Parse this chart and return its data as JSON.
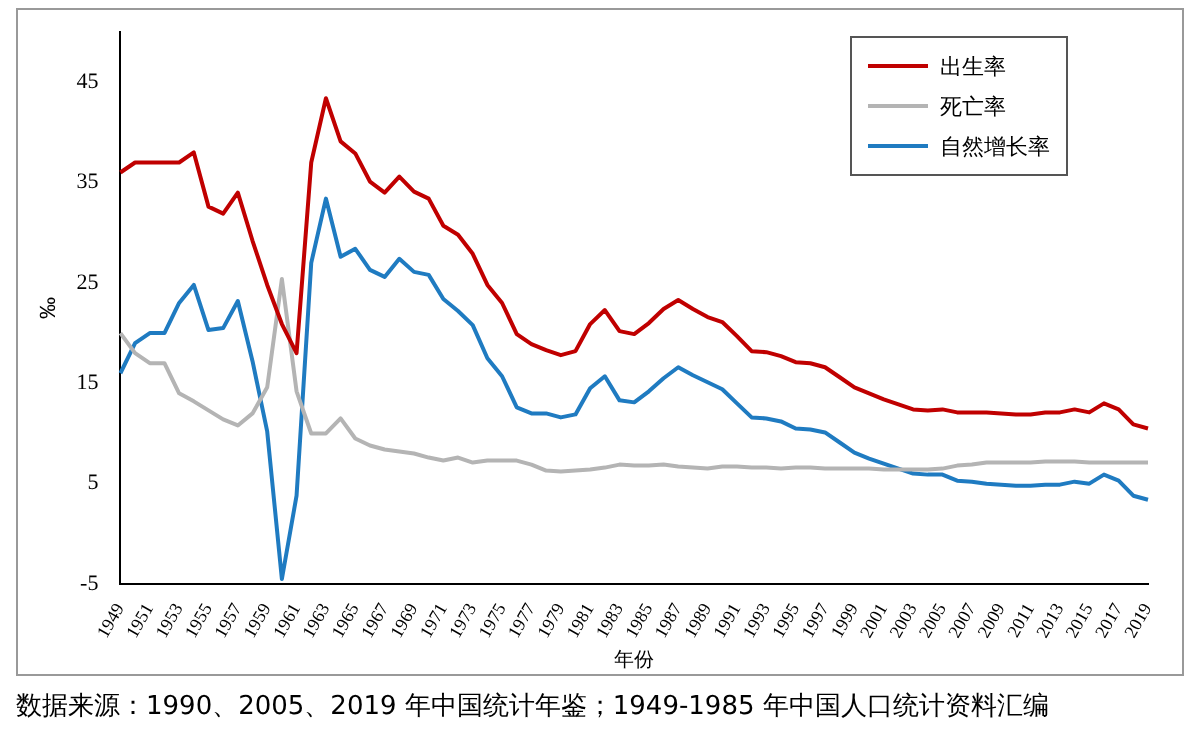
{
  "chart_data": {
    "type": "line",
    "xlabel": "年份",
    "ylabel": "‰",
    "categories": [
      "1949",
      null,
      "1951",
      null,
      "1953",
      null,
      "1955",
      null,
      "1957",
      null,
      "1959",
      null,
      "1961",
      null,
      "1963",
      null,
      "1965",
      null,
      "1967",
      null,
      "1969",
      null,
      "1971",
      null,
      "1973",
      null,
      "1975",
      null,
      "1977",
      null,
      "1979",
      null,
      "1981",
      null,
      "1983",
      null,
      "1985",
      null,
      "1987",
      null,
      "1989",
      null,
      "1991",
      null,
      "1993",
      null,
      "1995",
      null,
      "1997",
      null,
      "1999",
      null,
      "2001",
      null,
      "2003",
      null,
      "2005",
      null,
      "2007",
      null,
      "2009",
      null,
      "2011",
      null,
      "2013",
      null,
      "2015",
      null,
      "2017",
      null,
      "2019"
    ],
    "series": [
      {
        "name": "出生率",
        "color": "#c00000",
        "values": [
          36,
          37,
          37,
          37,
          37,
          38,
          32.6,
          31.9,
          34,
          29.2,
          24.8,
          20.9,
          18,
          37,
          43.4,
          39.1,
          37.9,
          35.1,
          34,
          35.6,
          34.1,
          33.4,
          30.7,
          29.8,
          27.9,
          24.8,
          23,
          19.9,
          18.9,
          18.3,
          17.8,
          18.2,
          20.9,
          22.3,
          20.2,
          19.9,
          21,
          22.4,
          23.3,
          22.4,
          21.6,
          21.1,
          19.7,
          18.2,
          18.1,
          17.7,
          17.1,
          17,
          16.6,
          15.6,
          14.6,
          14,
          13.4,
          12.9,
          12.4,
          12.3,
          12.4,
          12.1,
          12.1,
          12.1,
          12,
          11.9,
          11.9,
          12.1,
          12.1,
          12.4,
          12.1,
          13,
          12.4,
          10.9,
          10.5
        ]
      },
      {
        "name": "死亡率",
        "color": "#b4b4b4",
        "values": [
          20,
          18,
          17,
          17,
          14,
          13.2,
          12.3,
          11.4,
          10.8,
          12,
          14.6,
          25.4,
          14.2,
          10,
          10,
          11.5,
          9.5,
          8.8,
          8.4,
          8.2,
          8,
          7.6,
          7.3,
          7.6,
          7.1,
          7.3,
          7.3,
          7.3,
          6.9,
          6.3,
          6.2,
          6.3,
          6.4,
          6.6,
          6.9,
          6.8,
          6.8,
          6.9,
          6.7,
          6.6,
          6.5,
          6.7,
          6.7,
          6.6,
          6.6,
          6.5,
          6.6,
          6.6,
          6.5,
          6.5,
          6.5,
          6.5,
          6.4,
          6.4,
          6.4,
          6.4,
          6.5,
          6.8,
          6.9,
          7.1,
          7.1,
          7.1,
          7.1,
          7.2,
          7.2,
          7.2,
          7.1,
          7.1,
          7.1,
          7.1,
          7.1
        ]
      },
      {
        "name": "自然增长率",
        "color": "#1f7bc1",
        "values": [
          16,
          19,
          20,
          20,
          23,
          24.8,
          20.3,
          20.5,
          23.2,
          17.2,
          10.2,
          -4.5,
          3.8,
          27,
          33.4,
          27.6,
          28.4,
          26.3,
          25.6,
          27.4,
          26.1,
          25.8,
          23.4,
          22.2,
          20.8,
          17.5,
          15.7,
          12.6,
          12,
          12,
          11.6,
          11.9,
          14.5,
          15.7,
          13.3,
          13.1,
          14.2,
          15.5,
          16.6,
          15.8,
          15.1,
          14.4,
          13,
          11.6,
          11.5,
          11.2,
          10.5,
          10.4,
          10.1,
          9.1,
          8.1,
          7.5,
          7,
          6.5,
          6,
          5.9,
          5.9,
          5.3,
          5.2,
          5,
          4.9,
          4.8,
          4.8,
          4.9,
          4.9,
          5.2,
          5,
          5.9,
          5.3,
          3.8,
          3.4
        ]
      }
    ],
    "ylim": [
      -5,
      50
    ],
    "yticks": [
      -5,
      5,
      15,
      25,
      35,
      45
    ],
    "grid": false,
    "legend": "top right",
    "marker": "none",
    "line_style": "solid",
    "annotations": [
      "数据来源：1990、2005、2019 年中国统计年鉴；1949-1985 年中国人口统计资料汇编"
    ]
  }
}
